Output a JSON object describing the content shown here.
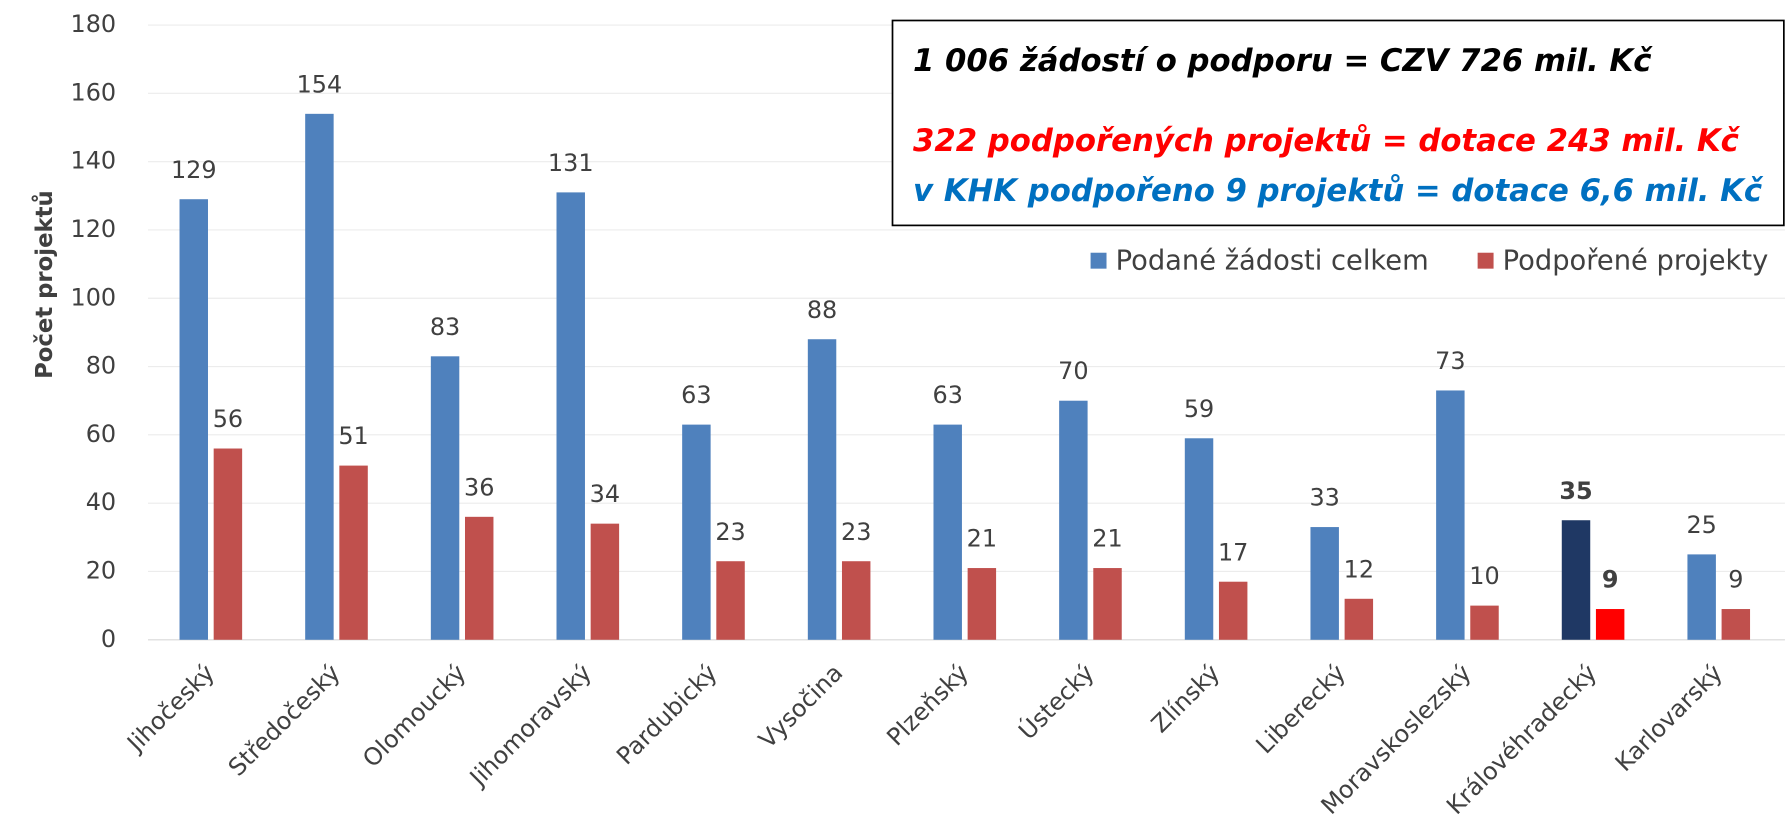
{
  "chart_data": {
    "type": "bar",
    "y_axis_label": "Počet projektů",
    "categories": [
      "Jihočeský",
      "Středočeský",
      "Olomoucký",
      "Jihomoravský",
      "Pardubický",
      "Vysočina",
      "Plzeňský",
      "Ústecký",
      "Zlínský",
      "Liberecký",
      "Moravskoslezský",
      "Královéhradecký",
      "Karlovarský"
    ],
    "series": [
      {
        "name": "Podané žádosti celkem",
        "color": "#4f81bd",
        "values": [
          129,
          154,
          83,
          131,
          63,
          88,
          63,
          70,
          59,
          33,
          73,
          35,
          25
        ]
      },
      {
        "name": "Podpořené projekty",
        "color": "#c0504d",
        "values": [
          56,
          51,
          36,
          34,
          23,
          23,
          21,
          21,
          17,
          12,
          10,
          9,
          9
        ]
      }
    ],
    "highlight": {
      "index": 11,
      "colors": [
        "#1f3864",
        "#ff0000"
      ],
      "bold_labels": true
    },
    "ylim": [
      0,
      180
    ],
    "yticks": [
      0,
      20,
      40,
      60,
      80,
      100,
      120,
      140,
      160,
      180
    ],
    "grid": true,
    "annotations": [
      {
        "text": "1 006 žádostí o podporu = CZV 726 mil. Kč",
        "color": "#000000"
      },
      {
        "text": "322 podpořených projektů = dotace 243 mil. Kč",
        "color": "#ff0000"
      },
      {
        "text": "v KHK podpořeno 9 projektů = dotace 6,6 mil. Kč",
        "color": "#0070c0"
      }
    ],
    "legend": "top-right"
  }
}
